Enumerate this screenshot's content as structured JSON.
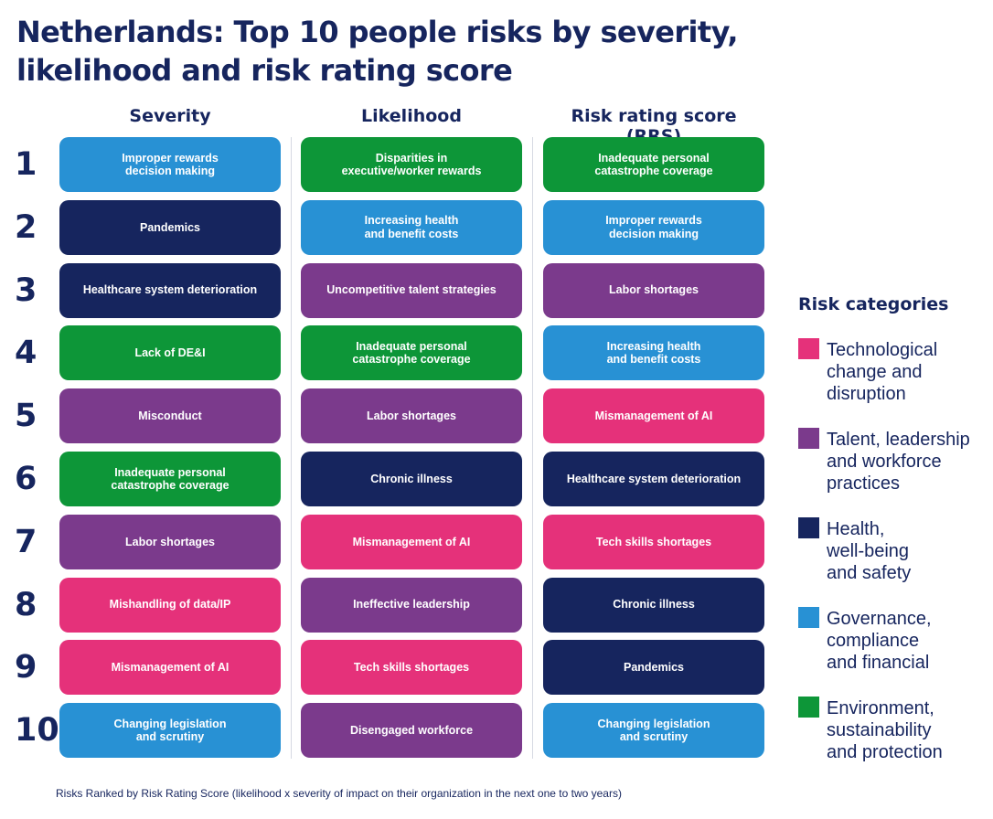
{
  "title": "Netherlands: Top 10 people risks by severity,\nlikelihood and risk rating score",
  "columns": [
    "Severity",
    "Likelihood",
    "Risk rating score (RRS)"
  ],
  "ranks": [
    "1",
    "2",
    "3",
    "4",
    "5",
    "6",
    "7",
    "8",
    "9",
    "10"
  ],
  "categories": {
    "tech": {
      "label": "Technological\nchange and\ndisruption",
      "color": "#e5317a"
    },
    "talent": {
      "label": "Talent, leadership\nand workforce\npractices",
      "color": "#7b3a8c"
    },
    "health": {
      "label": "Health,\nwell-being\nand safety",
      "color": "#16255e"
    },
    "gov": {
      "label": "Governance,\ncompliance\nand financial",
      "color": "#2891d4"
    },
    "env": {
      "label": "Environment,\nsustainability\nand protection",
      "color": "#0d9638"
    }
  },
  "legend": {
    "title": "Risk categories",
    "order": [
      "tech",
      "talent",
      "health",
      "gov",
      "env"
    ]
  },
  "grid": [
    [
      {
        "text": "Improper rewards\ndecision making",
        "cat": "gov"
      },
      {
        "text": "Pandemics",
        "cat": "health"
      },
      {
        "text": "Healthcare system deterioration",
        "cat": "health"
      },
      {
        "text": "Lack of DE&I",
        "cat": "env"
      },
      {
        "text": "Misconduct",
        "cat": "talent"
      },
      {
        "text": "Inadequate personal\ncatastrophe coverage",
        "cat": "env"
      },
      {
        "text": "Labor shortages",
        "cat": "talent"
      },
      {
        "text": "Mishandling of data/IP",
        "cat": "tech"
      },
      {
        "text": "Mismanagement of AI",
        "cat": "tech"
      },
      {
        "text": "Changing legislation\nand scrutiny",
        "cat": "gov"
      }
    ],
    [
      {
        "text": "Disparities in\nexecutive/worker rewards",
        "cat": "env"
      },
      {
        "text": "Increasing health\nand benefit costs",
        "cat": "gov"
      },
      {
        "text": "Uncompetitive talent strategies",
        "cat": "talent"
      },
      {
        "text": "Inadequate personal\ncatastrophe coverage",
        "cat": "env"
      },
      {
        "text": "Labor shortages",
        "cat": "talent"
      },
      {
        "text": "Chronic illness",
        "cat": "health"
      },
      {
        "text": "Mismanagement of AI",
        "cat": "tech"
      },
      {
        "text": "Ineffective leadership",
        "cat": "talent"
      },
      {
        "text": "Tech skills shortages",
        "cat": "tech"
      },
      {
        "text": "Disengaged workforce",
        "cat": "talent"
      }
    ],
    [
      {
        "text": "Inadequate personal\ncatastrophe coverage",
        "cat": "env"
      },
      {
        "text": "Improper rewards\ndecision making",
        "cat": "gov"
      },
      {
        "text": "Labor shortages",
        "cat": "talent"
      },
      {
        "text": "Increasing health\nand benefit costs",
        "cat": "gov"
      },
      {
        "text": "Mismanagement of AI",
        "cat": "tech"
      },
      {
        "text": "Healthcare system deterioration",
        "cat": "health"
      },
      {
        "text": "Tech skills shortages",
        "cat": "tech"
      },
      {
        "text": "Chronic illness",
        "cat": "health"
      },
      {
        "text": "Pandemics",
        "cat": "health"
      },
      {
        "text": "Changing legislation\nand scrutiny",
        "cat": "gov"
      }
    ]
  ],
  "footnote": "Risks Ranked by Risk Rating Score (likelihood x severity of impact on their organization in the next one to two years)"
}
